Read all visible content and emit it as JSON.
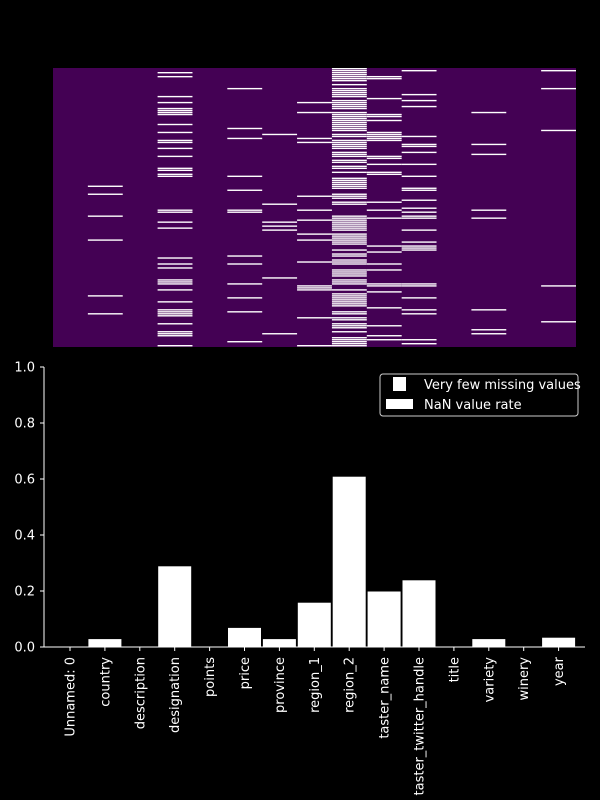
{
  "colors": {
    "background": "#000000",
    "heatmap_present": "#440154",
    "heatmap_missing": "#ffffff",
    "bar_fill": "#ffffff",
    "bar_edge": "#000000",
    "axis": "#ffffff",
    "text": "#ffffff"
  },
  "chart_data": [
    {
      "type": "heatmap",
      "columns": [
        "Unnamed: 0",
        "country",
        "description",
        "designation",
        "points",
        "price",
        "province",
        "region_1",
        "region_2",
        "taster_name",
        "taster_twitter_handle",
        "title",
        "variety",
        "winery",
        "year"
      ],
      "missing_rate": [
        0.0,
        0.03,
        0.0,
        0.29,
        0.0,
        0.07,
        0.03,
        0.16,
        0.61,
        0.2,
        0.24,
        0.0,
        0.03,
        0.0,
        0.035
      ],
      "axes_visible": false
    },
    {
      "type": "bar",
      "categories": [
        "Unnamed: 0",
        "country",
        "description",
        "designation",
        "points",
        "price",
        "province",
        "region_1",
        "region_2",
        "taster_name",
        "taster_twitter_handle",
        "title",
        "variety",
        "winery",
        "year"
      ],
      "series": [
        {
          "name": "NaN value rate",
          "values": [
            0.0,
            0.03,
            0.0,
            0.29,
            0.0,
            0.07,
            0.03,
            0.16,
            0.61,
            0.2,
            0.24,
            0.0,
            0.03,
            0.0,
            0.035
          ]
        }
      ],
      "ylim": [
        0,
        1.0
      ],
      "yticks": [
        "0.0",
        "0.2",
        "0.4",
        "0.6",
        "0.8",
        "1.0"
      ],
      "grid": false,
      "legend": {
        "placement": "top-right",
        "entries": [
          "Very few missing values",
          "NaN value rate"
        ]
      }
    }
  ]
}
